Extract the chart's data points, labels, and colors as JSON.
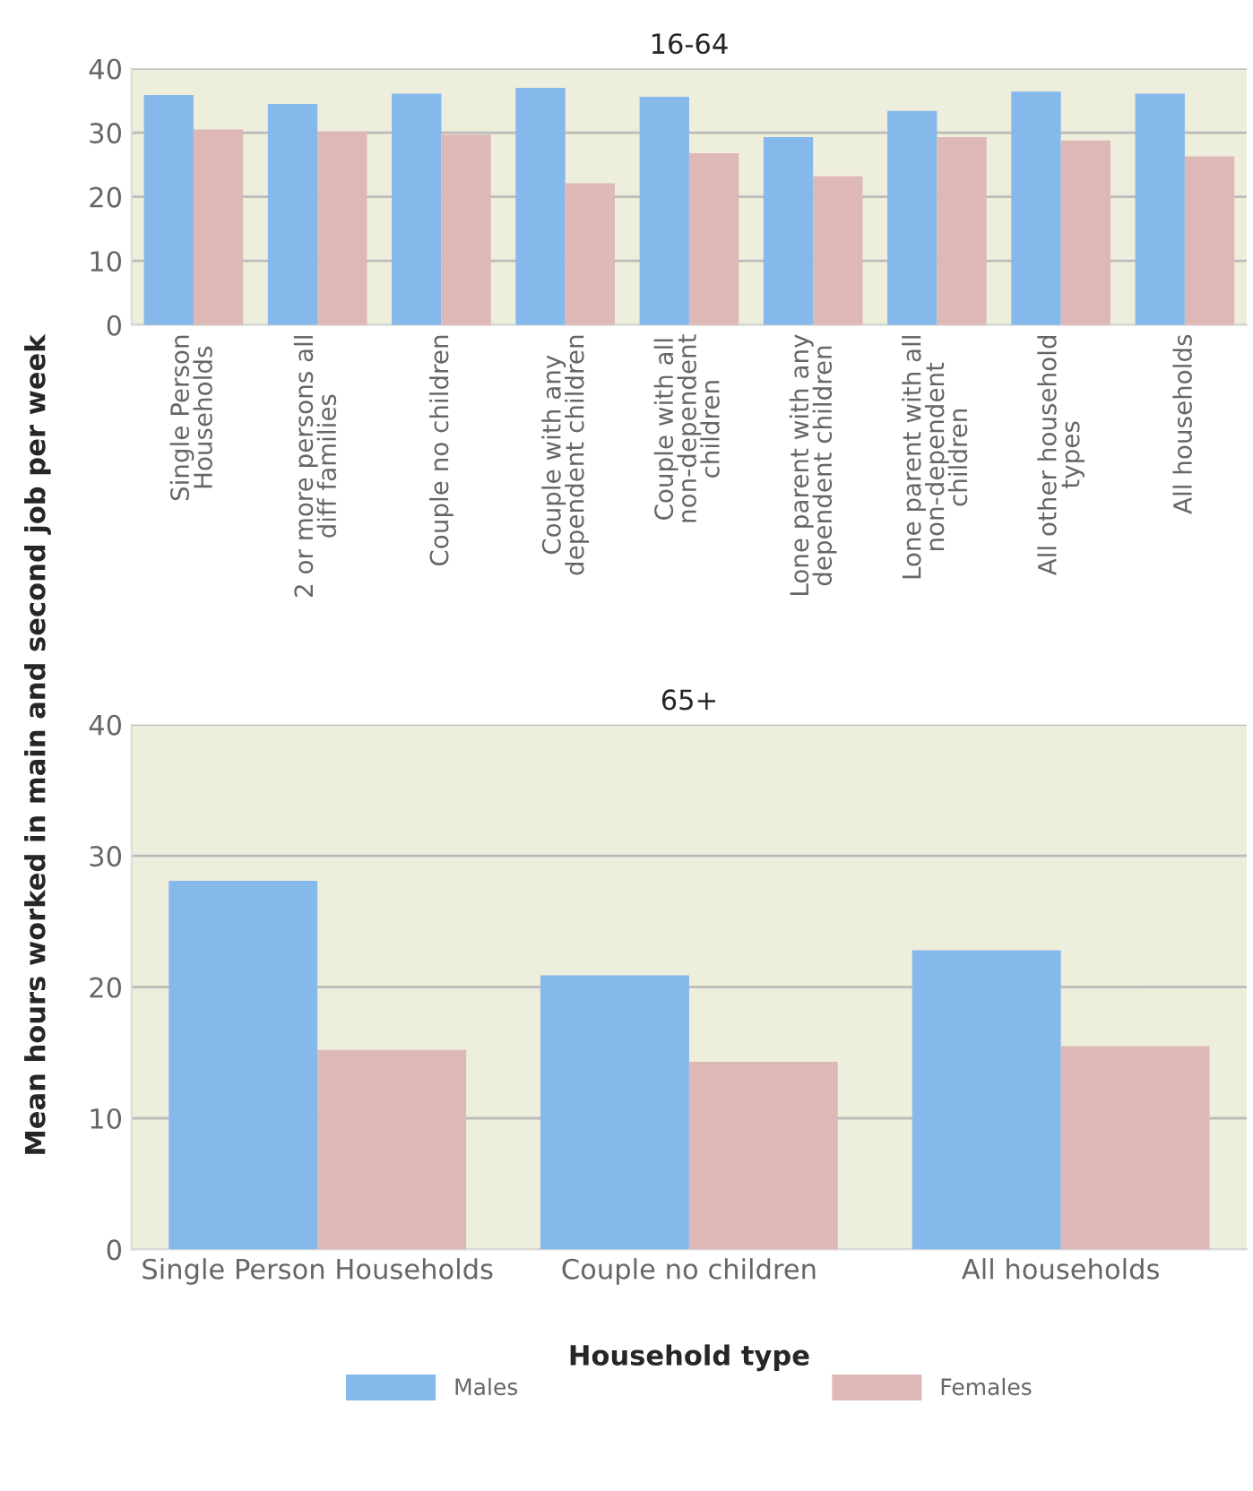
{
  "chart_data": [
    {
      "type": "bar",
      "title": "16-64",
      "ylabel": "Mean hours worked in main and second job per week",
      "categories": [
        "Single Person\nHouseholds",
        "2 or more persons all\ndiff families",
        "Couple no children",
        "Couple with any\ndependent children",
        "Couple with all\nnon-dependent\nchildren",
        "Lone parent with any\ndependent children",
        "Lone parent with all\nnon-dependent\nchildren",
        "All other household\ntypes",
        "All households"
      ],
      "series": [
        {
          "color": "#85b9eb",
          "values": [
            35.9,
            34.5,
            36.1,
            37.0,
            35.6,
            29.3,
            33.4,
            36.4,
            36.1
          ]
        },
        {
          "color": "#deb8b7",
          "values": [
            30.5,
            30.2,
            29.7,
            22.1,
            26.8,
            23.2,
            29.3,
            28.8,
            26.3
          ]
        }
      ],
      "ylim": [
        0,
        40
      ],
      "yticks": [
        0,
        10,
        20,
        30,
        40
      ],
      "grid": "y",
      "legend": false
    },
    {
      "type": "bar",
      "title": "65+",
      "xlabel": "Household type",
      "categories": [
        "Single Person Households",
        "Couple no children",
        "All households"
      ],
      "series": [
        {
          "name": "Males",
          "color": "#85b9eb",
          "values": [
            28.1,
            20.9,
            22.8
          ]
        },
        {
          "name": "Females",
          "color": "#deb8b7",
          "values": [
            15.2,
            14.3,
            15.5
          ]
        }
      ],
      "ylim": [
        0,
        40
      ],
      "yticks": [
        0,
        10,
        20,
        30,
        40
      ],
      "grid": "y",
      "legend": "bottom"
    }
  ]
}
